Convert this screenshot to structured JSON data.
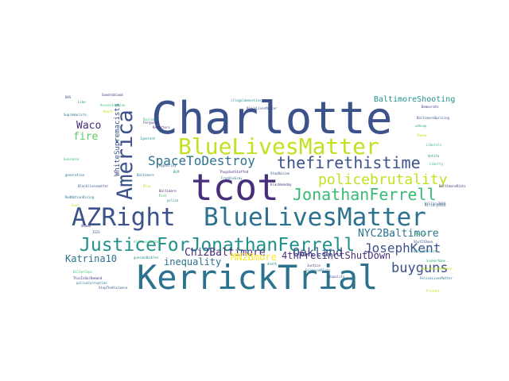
{
  "palette": {
    "navy": "#3b528b",
    "purple": "#472d7b",
    "teal": "#2c728e",
    "teal_dark": "#21918c",
    "green": "#3aba76",
    "lime": "#c5e021",
    "yellow": "#fde725",
    "green_light": "#5ec962"
  },
  "words": [
    {
      "text": "Charlotte",
      "color": "#3b528b"
    },
    {
      "text": "tcot",
      "color": "#472d7b"
    },
    {
      "text": "KerrickTrial",
      "color": "#2c728e"
    },
    {
      "text": "BlueLivesMatter",
      "color": "#c5e021"
    },
    {
      "text": "AZRight",
      "color": "#3b528b"
    },
    {
      "text": "BlueLivesMatter",
      "color": "#2c728e"
    },
    {
      "text": "JusticeForJonathanFerrell",
      "color": "#21918c"
    },
    {
      "text": "America",
      "color": "#3b528b"
    },
    {
      "text": "JonathanFerrell",
      "color": "#3aba76"
    },
    {
      "text": "thefirethistime",
      "color": "#3b528b"
    },
    {
      "text": "SpaceToDestroy",
      "color": "#2c728e"
    },
    {
      "text": "policebrutality",
      "color": "#c5e021"
    },
    {
      "text": "JosephKent",
      "color": "#3b528b"
    },
    {
      "text": "buyguns",
      "color": "#3b528b"
    },
    {
      "text": "Oakland",
      "color": "#3b528b"
    },
    {
      "text": "NYC2Baltimore",
      "color": "#2c728e"
    },
    {
      "text": "Chi2Baltimore",
      "color": "#472d7b"
    },
    {
      "text": "4thPrecinctShutDown",
      "color": "#472d7b"
    },
    {
      "text": "MN2Bmore",
      "color": "#fde725"
    },
    {
      "text": "inequality",
      "color": "#2c728e"
    },
    {
      "text": "Katrina10",
      "color": "#2c728e"
    },
    {
      "text": "Waco",
      "color": "#472d7b"
    },
    {
      "text": "fire",
      "color": "#5ec962"
    },
    {
      "text": "WhiteSupremacists",
      "color": "#3b528b"
    },
    {
      "text": "BaltimoreShooting",
      "color": "#21918c"
    }
  ],
  "small_words": [
    "DHS",
    "Like",
    "Supremacists",
    "Sandrabland",
    "Assassination",
    "Heart",
    "illegalamnesties",
    "BlackLivesMatter",
    "Ferguson",
    "Hillary2016",
    "Racism",
    "Reporters",
    "BaltimoreUprising",
    "Ignorant",
    "wakeup",
    "Democrats",
    "Sheep",
    "Hypocrisy",
    "BLM",
    "Liberals",
    "Baltimore",
    "Blue",
    "Gunsense",
    "generation",
    "Blacklivesmatter",
    "ThugsGetStaffed",
    "Antifa",
    "Liberty",
    "FreddieGray",
    "StopRacism",
    "Baltimore",
    "blackmonday",
    "Riot",
    "police",
    "Hillary2016",
    "Guns",
    "RedNationRising",
    "Racism",
    "Obama",
    "ISIS",
    "death",
    "KillerCops",
    "policeCorruption",
    "ThisIsOurDemand",
    "ShutItDown",
    "PoliceLivesMatter",
    "Protest",
    "StopTheViolence",
    "Justice",
    "gunsandbibles",
    "AllLivesMatter",
    "FergusonRiots",
    "Equality",
    "BaltimoreRiots",
    "DefundPolice",
    "SayHerName",
    "NoJusticeNoPeace"
  ]
}
